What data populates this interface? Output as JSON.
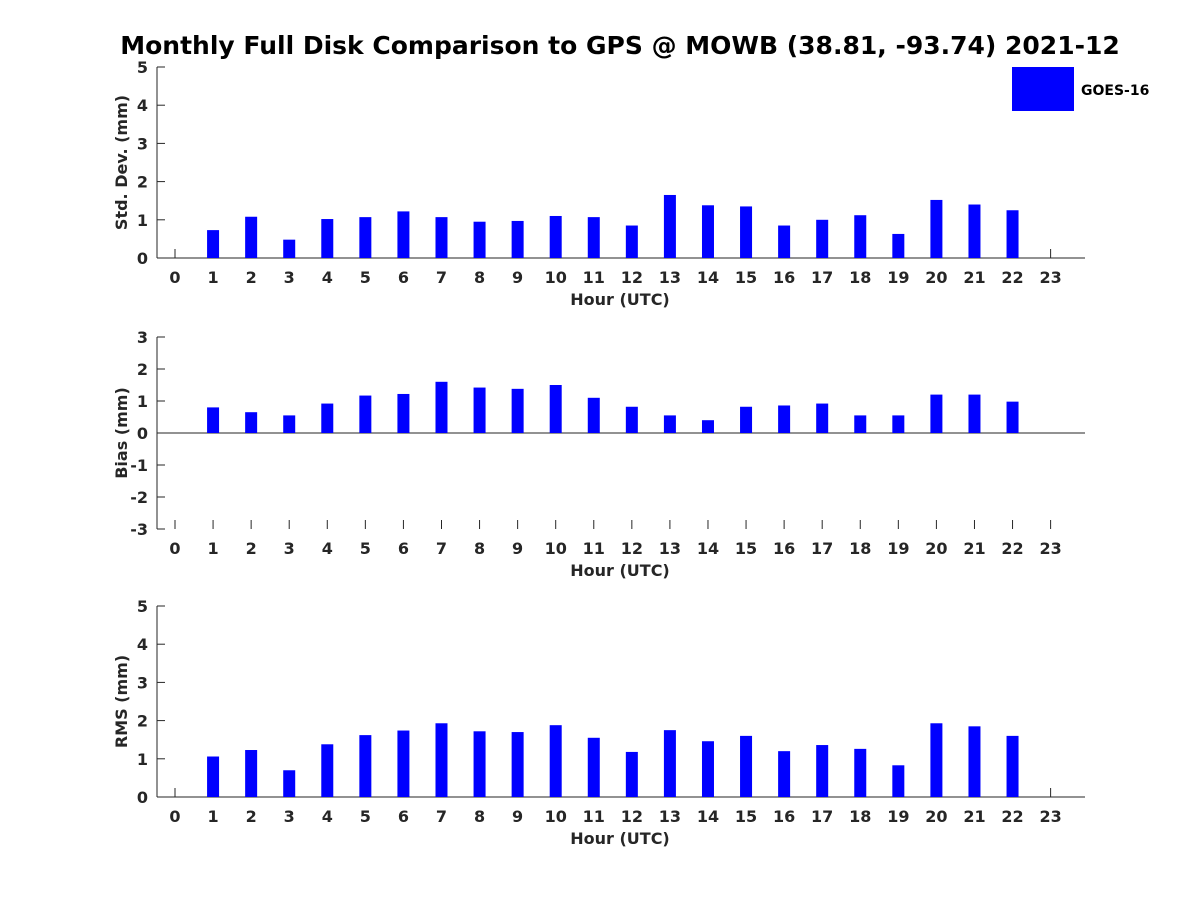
{
  "chart_data": {
    "title": "Monthly Full Disk Comparison to GPS @ MOWB (38.81, -93.74) 2021-12",
    "legend": {
      "label": "GOES-16",
      "color": "#0000ff",
      "placement": "top-right"
    },
    "panels": [
      {
        "type": "bar",
        "xlabel": "Hour (UTC)",
        "ylabel": "Std. Dev. (mm)",
        "ylim": [
          0,
          5
        ],
        "yticks": [
          0,
          1,
          2,
          3,
          4,
          5
        ],
        "categories": [
          "0",
          "1",
          "2",
          "3",
          "4",
          "5",
          "6",
          "7",
          "8",
          "9",
          "10",
          "11",
          "12",
          "13",
          "14",
          "15",
          "16",
          "17",
          "18",
          "19",
          "20",
          "21",
          "22",
          "23"
        ],
        "series": [
          {
            "name": "GOES-16",
            "values": [
              null,
              0.73,
              1.08,
              0.48,
              1.02,
              1.07,
              1.22,
              1.07,
              0.95,
              0.97,
              1.1,
              1.07,
              0.85,
              1.65,
              1.38,
              1.35,
              0.85,
              1.0,
              1.12,
              0.63,
              1.52,
              1.4,
              1.25,
              null
            ]
          }
        ]
      },
      {
        "type": "bar",
        "xlabel": "Hour (UTC)",
        "ylabel": "Bias (mm)",
        "ylim": [
          -3,
          3
        ],
        "yticks": [
          -3,
          -2,
          -1,
          0,
          1,
          2,
          3
        ],
        "categories": [
          "0",
          "1",
          "2",
          "3",
          "4",
          "5",
          "6",
          "7",
          "8",
          "9",
          "10",
          "11",
          "12",
          "13",
          "14",
          "15",
          "16",
          "17",
          "18",
          "19",
          "20",
          "21",
          "22",
          "23"
        ],
        "series": [
          {
            "name": "GOES-16",
            "values": [
              null,
              0.8,
              0.65,
              0.55,
              0.92,
              1.17,
              1.22,
              1.6,
              1.42,
              1.38,
              1.5,
              1.1,
              0.82,
              0.55,
              0.4,
              0.82,
              0.86,
              0.92,
              0.55,
              0.55,
              1.2,
              1.2,
              0.98,
              null
            ]
          }
        ]
      },
      {
        "type": "bar",
        "xlabel": "Hour (UTC)",
        "ylabel": "RMS (mm)",
        "ylim": [
          0,
          5
        ],
        "yticks": [
          0,
          1,
          2,
          3,
          4,
          5
        ],
        "categories": [
          "0",
          "1",
          "2",
          "3",
          "4",
          "5",
          "6",
          "7",
          "8",
          "9",
          "10",
          "11",
          "12",
          "13",
          "14",
          "15",
          "16",
          "17",
          "18",
          "19",
          "20",
          "21",
          "22",
          "23"
        ],
        "series": [
          {
            "name": "GOES-16",
            "values": [
              null,
              1.06,
              1.23,
              0.7,
              1.38,
              1.62,
              1.74,
              1.93,
              1.72,
              1.7,
              1.88,
              1.55,
              1.18,
              1.75,
              1.46,
              1.6,
              1.2,
              1.36,
              1.26,
              0.83,
              1.93,
              1.85,
              1.6,
              null
            ]
          }
        ]
      }
    ]
  }
}
